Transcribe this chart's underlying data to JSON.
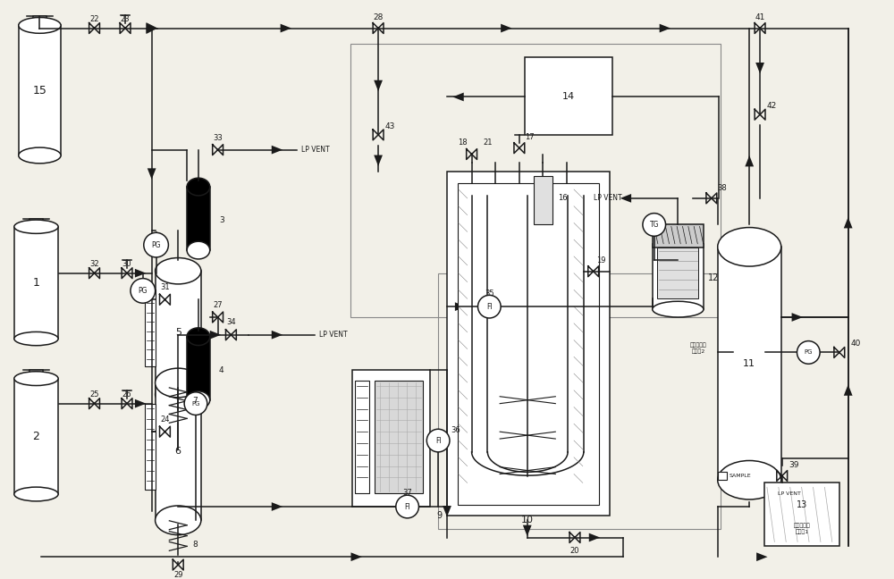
{
  "bg_color": "#f2f0e8",
  "line_color": "#1a1a1a",
  "fig_width": 10.0,
  "fig_height": 6.48,
  "lp_vent": "LP VENT",
  "alkylate1": "烷基化汽油\n取样口1",
  "alkylate2": "烷基化汽油\n取样口2",
  "sample": "SAMPLE"
}
